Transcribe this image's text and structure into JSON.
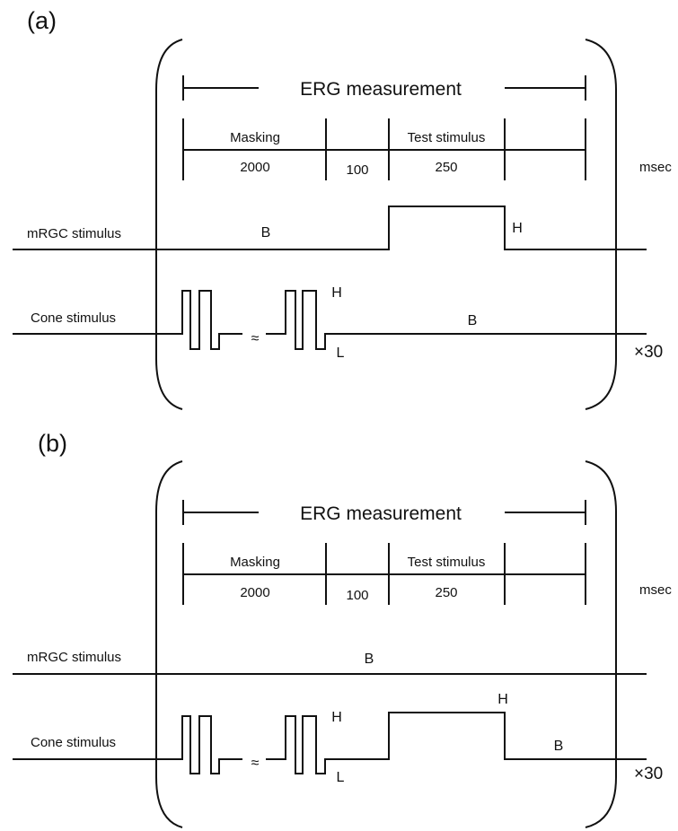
{
  "panels": [
    {
      "label": "(a)",
      "title": "ERG measurement",
      "segments": {
        "masking": "Masking",
        "test": "Test stimulus"
      },
      "durations": {
        "masking": "2000",
        "gap": "100",
        "test": "250"
      },
      "unit": "msec",
      "rows": {
        "mrgc": "mRGC stimulus",
        "cone": "Cone stimulus"
      },
      "letters": {
        "mrgc_high": "H",
        "mrgc_base": "B",
        "cone_high": "H",
        "cone_low": "L",
        "cone_base": "B"
      },
      "repeat": "×30"
    },
    {
      "label": "(b)",
      "title": "ERG measurement",
      "segments": {
        "masking": "Masking",
        "test": "Test stimulus"
      },
      "durations": {
        "masking": "2000",
        "gap": "100",
        "test": "250"
      },
      "unit": "msec",
      "rows": {
        "mrgc": "mRGC stimulus",
        "cone": "Cone stimulus"
      },
      "letters": {
        "mrgc_base": "B",
        "cone_high": "H",
        "cone_low": "L",
        "cone_step_high": "H",
        "cone_base": "B"
      },
      "repeat": "×30"
    }
  ]
}
